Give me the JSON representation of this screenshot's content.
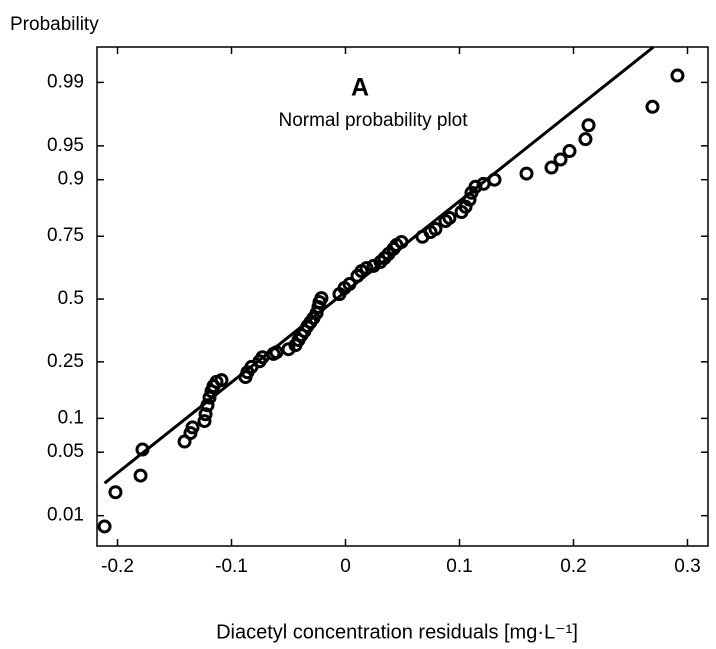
{
  "chart_data": {
    "type": "scatter",
    "title": "A",
    "subtitle": "Normal probability plot",
    "x_label": "Diacetyl concentration residuals [mg·L⁻¹]",
    "y_label": "Probability",
    "yscale": "normal-probability",
    "xlim": [
      -0.218,
      0.318
    ],
    "ylim": [
      0.004,
      0.9966
    ],
    "xticks": [
      -0.2,
      -0.1,
      0,
      0.1,
      0.2,
      0.3
    ],
    "yticks": [
      0.01,
      0.05,
      0.1,
      0.25,
      0.5,
      0.75,
      0.9,
      0.95,
      0.99
    ],
    "color": "#000000",
    "grid": false,
    "reference_line": {
      "x": [
        -0.2114,
        0.2702
      ],
      "y": [
        0.024,
        0.9966
      ]
    },
    "x": [
      -0.2114,
      -0.2018,
      -0.1798,
      -0.1781,
      -0.1412,
      -0.136,
      -0.1342,
      -0.1237,
      -0.1228,
      -0.1211,
      -0.1193,
      -0.1175,
      -0.1158,
      -0.1132,
      -0.1088,
      -0.0877,
      -0.086,
      -0.0825,
      -0.0754,
      -0.0728,
      -0.0632,
      -0.0605,
      -0.05,
      -0.0439,
      -0.0412,
      -0.0386,
      -0.036,
      -0.0333,
      -0.0307,
      -0.0281,
      -0.0254,
      -0.0237,
      -0.0228,
      -0.0211,
      -0.0053,
      -0.0009,
      0.0035,
      0.0105,
      0.014,
      0.0184,
      0.0246,
      0.0307,
      0.0342,
      0.0377,
      0.0421,
      0.0447,
      0.0491,
      0.0675,
      0.0746,
      0.0789,
      0.0877,
      0.0912,
      0.1018,
      0.1053,
      0.1088,
      0.1105,
      0.114,
      0.1211,
      0.1307,
      0.1588,
      0.1807,
      0.1886,
      0.1965,
      0.2105,
      0.2132,
      0.2693,
      0.2912
    ],
    "values": [
      0.0073,
      0.019,
      0.029,
      0.053,
      0.063,
      0.075,
      0.084,
      0.095,
      0.108,
      0.127,
      0.145,
      0.161,
      0.175,
      0.187,
      0.192,
      0.201,
      0.216,
      0.233,
      0.252,
      0.266,
      0.278,
      0.284,
      0.295,
      0.31,
      0.33,
      0.349,
      0.365,
      0.386,
      0.402,
      0.419,
      0.44,
      0.466,
      0.487,
      0.504,
      0.521,
      0.547,
      0.564,
      0.598,
      0.618,
      0.63,
      0.639,
      0.655,
      0.67,
      0.686,
      0.705,
      0.719,
      0.73,
      0.748,
      0.764,
      0.774,
      0.799,
      0.808,
      0.825,
      0.839,
      0.857,
      0.873,
      0.886,
      0.892,
      0.9,
      0.911,
      0.921,
      0.933,
      0.944,
      0.957,
      0.969,
      0.9805,
      0.9918
    ]
  }
}
